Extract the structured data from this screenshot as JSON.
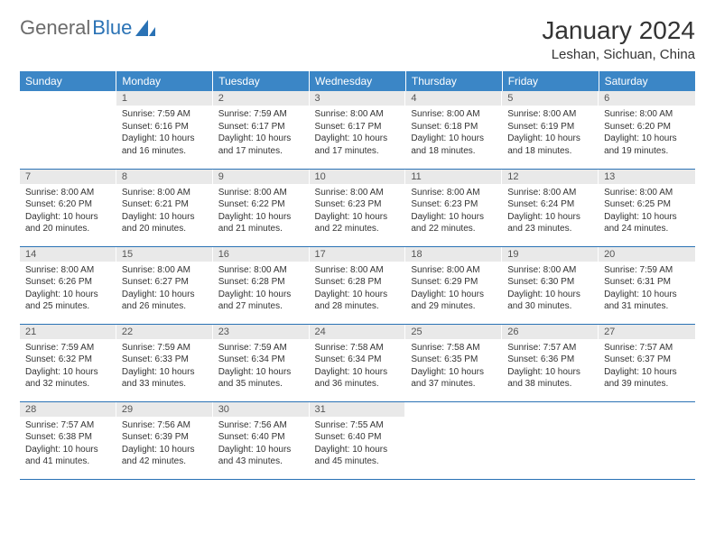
{
  "logo": {
    "word1": "General",
    "word2": "Blue"
  },
  "title": "January 2024",
  "location": "Leshan, Sichuan, China",
  "colors": {
    "header_bg": "#3b86c6",
    "header_text": "#ffffff",
    "daynum_bg": "#e9e9e9",
    "border": "#2a72b5",
    "logo_gray": "#6b6b6b",
    "logo_blue": "#2a72b5"
  },
  "weekdays": [
    "Sunday",
    "Monday",
    "Tuesday",
    "Wednesday",
    "Thursday",
    "Friday",
    "Saturday"
  ],
  "weeks": [
    [
      {
        "day": "",
        "sunrise": "",
        "sunset": "",
        "daylight1": "",
        "daylight2": ""
      },
      {
        "day": "1",
        "sunrise": "Sunrise: 7:59 AM",
        "sunset": "Sunset: 6:16 PM",
        "daylight1": "Daylight: 10 hours",
        "daylight2": "and 16 minutes."
      },
      {
        "day": "2",
        "sunrise": "Sunrise: 7:59 AM",
        "sunset": "Sunset: 6:17 PM",
        "daylight1": "Daylight: 10 hours",
        "daylight2": "and 17 minutes."
      },
      {
        "day": "3",
        "sunrise": "Sunrise: 8:00 AM",
        "sunset": "Sunset: 6:17 PM",
        "daylight1": "Daylight: 10 hours",
        "daylight2": "and 17 minutes."
      },
      {
        "day": "4",
        "sunrise": "Sunrise: 8:00 AM",
        "sunset": "Sunset: 6:18 PM",
        "daylight1": "Daylight: 10 hours",
        "daylight2": "and 18 minutes."
      },
      {
        "day": "5",
        "sunrise": "Sunrise: 8:00 AM",
        "sunset": "Sunset: 6:19 PM",
        "daylight1": "Daylight: 10 hours",
        "daylight2": "and 18 minutes."
      },
      {
        "day": "6",
        "sunrise": "Sunrise: 8:00 AM",
        "sunset": "Sunset: 6:20 PM",
        "daylight1": "Daylight: 10 hours",
        "daylight2": "and 19 minutes."
      }
    ],
    [
      {
        "day": "7",
        "sunrise": "Sunrise: 8:00 AM",
        "sunset": "Sunset: 6:20 PM",
        "daylight1": "Daylight: 10 hours",
        "daylight2": "and 20 minutes."
      },
      {
        "day": "8",
        "sunrise": "Sunrise: 8:00 AM",
        "sunset": "Sunset: 6:21 PM",
        "daylight1": "Daylight: 10 hours",
        "daylight2": "and 20 minutes."
      },
      {
        "day": "9",
        "sunrise": "Sunrise: 8:00 AM",
        "sunset": "Sunset: 6:22 PM",
        "daylight1": "Daylight: 10 hours",
        "daylight2": "and 21 minutes."
      },
      {
        "day": "10",
        "sunrise": "Sunrise: 8:00 AM",
        "sunset": "Sunset: 6:23 PM",
        "daylight1": "Daylight: 10 hours",
        "daylight2": "and 22 minutes."
      },
      {
        "day": "11",
        "sunrise": "Sunrise: 8:00 AM",
        "sunset": "Sunset: 6:23 PM",
        "daylight1": "Daylight: 10 hours",
        "daylight2": "and 22 minutes."
      },
      {
        "day": "12",
        "sunrise": "Sunrise: 8:00 AM",
        "sunset": "Sunset: 6:24 PM",
        "daylight1": "Daylight: 10 hours",
        "daylight2": "and 23 minutes."
      },
      {
        "day": "13",
        "sunrise": "Sunrise: 8:00 AM",
        "sunset": "Sunset: 6:25 PM",
        "daylight1": "Daylight: 10 hours",
        "daylight2": "and 24 minutes."
      }
    ],
    [
      {
        "day": "14",
        "sunrise": "Sunrise: 8:00 AM",
        "sunset": "Sunset: 6:26 PM",
        "daylight1": "Daylight: 10 hours",
        "daylight2": "and 25 minutes."
      },
      {
        "day": "15",
        "sunrise": "Sunrise: 8:00 AM",
        "sunset": "Sunset: 6:27 PM",
        "daylight1": "Daylight: 10 hours",
        "daylight2": "and 26 minutes."
      },
      {
        "day": "16",
        "sunrise": "Sunrise: 8:00 AM",
        "sunset": "Sunset: 6:28 PM",
        "daylight1": "Daylight: 10 hours",
        "daylight2": "and 27 minutes."
      },
      {
        "day": "17",
        "sunrise": "Sunrise: 8:00 AM",
        "sunset": "Sunset: 6:28 PM",
        "daylight1": "Daylight: 10 hours",
        "daylight2": "and 28 minutes."
      },
      {
        "day": "18",
        "sunrise": "Sunrise: 8:00 AM",
        "sunset": "Sunset: 6:29 PM",
        "daylight1": "Daylight: 10 hours",
        "daylight2": "and 29 minutes."
      },
      {
        "day": "19",
        "sunrise": "Sunrise: 8:00 AM",
        "sunset": "Sunset: 6:30 PM",
        "daylight1": "Daylight: 10 hours",
        "daylight2": "and 30 minutes."
      },
      {
        "day": "20",
        "sunrise": "Sunrise: 7:59 AM",
        "sunset": "Sunset: 6:31 PM",
        "daylight1": "Daylight: 10 hours",
        "daylight2": "and 31 minutes."
      }
    ],
    [
      {
        "day": "21",
        "sunrise": "Sunrise: 7:59 AM",
        "sunset": "Sunset: 6:32 PM",
        "daylight1": "Daylight: 10 hours",
        "daylight2": "and 32 minutes."
      },
      {
        "day": "22",
        "sunrise": "Sunrise: 7:59 AM",
        "sunset": "Sunset: 6:33 PM",
        "daylight1": "Daylight: 10 hours",
        "daylight2": "and 33 minutes."
      },
      {
        "day": "23",
        "sunrise": "Sunrise: 7:59 AM",
        "sunset": "Sunset: 6:34 PM",
        "daylight1": "Daylight: 10 hours",
        "daylight2": "and 35 minutes."
      },
      {
        "day": "24",
        "sunrise": "Sunrise: 7:58 AM",
        "sunset": "Sunset: 6:34 PM",
        "daylight1": "Daylight: 10 hours",
        "daylight2": "and 36 minutes."
      },
      {
        "day": "25",
        "sunrise": "Sunrise: 7:58 AM",
        "sunset": "Sunset: 6:35 PM",
        "daylight1": "Daylight: 10 hours",
        "daylight2": "and 37 minutes."
      },
      {
        "day": "26",
        "sunrise": "Sunrise: 7:57 AM",
        "sunset": "Sunset: 6:36 PM",
        "daylight1": "Daylight: 10 hours",
        "daylight2": "and 38 minutes."
      },
      {
        "day": "27",
        "sunrise": "Sunrise: 7:57 AM",
        "sunset": "Sunset: 6:37 PM",
        "daylight1": "Daylight: 10 hours",
        "daylight2": "and 39 minutes."
      }
    ],
    [
      {
        "day": "28",
        "sunrise": "Sunrise: 7:57 AM",
        "sunset": "Sunset: 6:38 PM",
        "daylight1": "Daylight: 10 hours",
        "daylight2": "and 41 minutes."
      },
      {
        "day": "29",
        "sunrise": "Sunrise: 7:56 AM",
        "sunset": "Sunset: 6:39 PM",
        "daylight1": "Daylight: 10 hours",
        "daylight2": "and 42 minutes."
      },
      {
        "day": "30",
        "sunrise": "Sunrise: 7:56 AM",
        "sunset": "Sunset: 6:40 PM",
        "daylight1": "Daylight: 10 hours",
        "daylight2": "and 43 minutes."
      },
      {
        "day": "31",
        "sunrise": "Sunrise: 7:55 AM",
        "sunset": "Sunset: 6:40 PM",
        "daylight1": "Daylight: 10 hours",
        "daylight2": "and 45 minutes."
      },
      {
        "day": "",
        "sunrise": "",
        "sunset": "",
        "daylight1": "",
        "daylight2": ""
      },
      {
        "day": "",
        "sunrise": "",
        "sunset": "",
        "daylight1": "",
        "daylight2": ""
      },
      {
        "day": "",
        "sunrise": "",
        "sunset": "",
        "daylight1": "",
        "daylight2": ""
      }
    ]
  ]
}
